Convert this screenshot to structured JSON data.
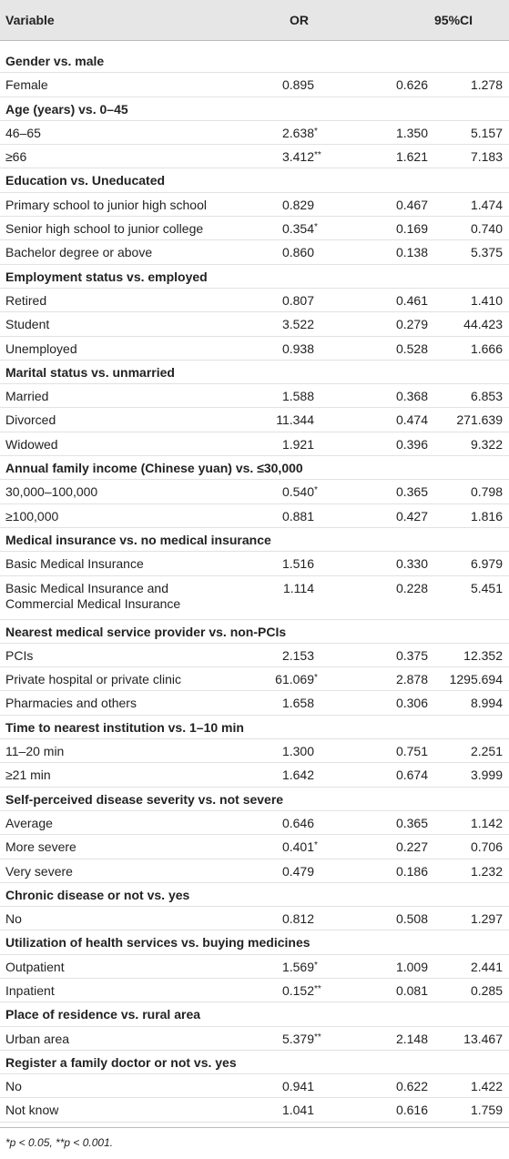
{
  "table": {
    "header": [
      "Variable",
      "OR",
      "95%CI"
    ],
    "groups": [
      {
        "title": "Gender vs. male",
        "rows": [
          {
            "label": "Female",
            "or": "0.895",
            "ci_low": "0.626",
            "ci_high": "1.278"
          }
        ]
      },
      {
        "title": "Age (years) vs. 0–45",
        "rows": [
          {
            "label": "46–65",
            "or": "2.638",
            "sig": "*",
            "ci_low": "1.350",
            "ci_high": "5.157"
          },
          {
            "label": "≥66",
            "or": "3.412",
            "sig": "**",
            "ci_low": "1.621",
            "ci_high": "7.183"
          }
        ]
      },
      {
        "title": "Education vs. Uneducated",
        "rows": [
          {
            "label": "Primary school to junior high school",
            "or": "0.829",
            "ci_low": "0.467",
            "ci_high": "1.474"
          },
          {
            "label": "Senior high school to junior college",
            "or": "0.354",
            "sig": "*",
            "ci_low": "0.169",
            "ci_high": "0.740"
          },
          {
            "label": "Bachelor degree or above",
            "or": "0.860",
            "ci_low": "0.138",
            "ci_high": "5.375"
          }
        ]
      },
      {
        "title": "Employment status vs. employed",
        "rows": [
          {
            "label": "Retired",
            "or": "0.807",
            "ci_low": "0.461",
            "ci_high": "1.410"
          },
          {
            "label": "Student",
            "or": "3.522",
            "ci_low": "0.279",
            "ci_high": "44.423"
          },
          {
            "label": "Unemployed",
            "or": "0.938",
            "ci_low": "0.528",
            "ci_high": "1.666"
          }
        ]
      },
      {
        "title": "Marital status vs. unmarried",
        "rows": [
          {
            "label": "Married",
            "or": "1.588",
            "ci_low": "0.368",
            "ci_high": "6.853"
          },
          {
            "label": "Divorced",
            "or": "11.344",
            "ci_low": "0.474",
            "ci_high": "271.639"
          },
          {
            "label": "Widowed",
            "or": "1.921",
            "ci_low": "0.396",
            "ci_high": "9.322"
          }
        ]
      },
      {
        "title": "Annual family income (Chinese yuan) vs. ≤30,000",
        "rows": [
          {
            "label": "30,000–100,000",
            "or": "0.540",
            "sig": "*",
            "ci_low": "0.365",
            "ci_high": "0.798"
          },
          {
            "label": "≥100,000",
            "or": "0.881",
            "ci_low": "0.427",
            "ci_high": "1.816"
          }
        ]
      },
      {
        "title": "Medical insurance vs. no medical insurance",
        "rows": [
          {
            "label": "Basic Medical Insurance",
            "or": "1.516",
            "ci_low": "0.330",
            "ci_high": "6.979"
          },
          {
            "label": "Basic Medical Insurance and\nCommercial Medical Insurance",
            "or": "1.114",
            "ci_low": "0.228",
            "ci_high": "5.451"
          }
        ]
      },
      {
        "title": "Nearest medical service provider vs. non-PCIs",
        "rows": [
          {
            "label": "PCIs",
            "or": "2.153",
            "ci_low": "0.375",
            "ci_high": "12.352"
          },
          {
            "label": "Private hospital or private clinic",
            "or": "61.069",
            "sig": "*",
            "ci_low": "2.878",
            "ci_high": "1295.694"
          },
          {
            "label": "Pharmacies and others",
            "or": "1.658",
            "ci_low": "0.306",
            "ci_high": "8.994"
          }
        ]
      },
      {
        "title": "Time to nearest institution vs. 1–10 min",
        "rows": [
          {
            "label": "11–20 min",
            "or": "1.300",
            "ci_low": "0.751",
            "ci_high": "2.251"
          },
          {
            "label": "≥21 min",
            "or": "1.642",
            "ci_low": "0.674",
            "ci_high": "3.999"
          }
        ]
      },
      {
        "title": "Self-perceived disease severity vs. not severe",
        "rows": [
          {
            "label": "Average",
            "or": "0.646",
            "ci_low": "0.365",
            "ci_high": "1.142"
          },
          {
            "label": "More severe",
            "or": "0.401",
            "sig": "*",
            "ci_low": "0.227",
            "ci_high": "0.706"
          },
          {
            "label": "Very severe",
            "or": "0.479",
            "ci_low": "0.186",
            "ci_high": "1.232"
          }
        ]
      },
      {
        "title": "Chronic disease or not vs. yes",
        "rows": [
          {
            "label": "No",
            "or": "0.812",
            "ci_low": "0.508",
            "ci_high": "1.297"
          }
        ]
      },
      {
        "title": "Utilization of health services vs. buying medicines",
        "rows": [
          {
            "label": "Outpatient",
            "or": "1.569",
            "sig": "*",
            "ci_low": "1.009",
            "ci_high": "2.441"
          },
          {
            "label": "Inpatient",
            "or": "0.152",
            "sig": "**",
            "ci_low": "0.081",
            "ci_high": "0.285"
          }
        ]
      },
      {
        "title": "Place of residence vs. rural area",
        "rows": [
          {
            "label": "Urban area",
            "or": "5.379",
            "sig": "**",
            "ci_low": "2.148",
            "ci_high": "13.467"
          }
        ]
      },
      {
        "title": "Register a family doctor or not vs. yes",
        "rows": [
          {
            "label": "No",
            "or": "0.941",
            "ci_low": "0.622",
            "ci_high": "1.422"
          },
          {
            "label": "Not know",
            "or": "1.041",
            "ci_low": "0.616",
            "ci_high": "1.759"
          }
        ]
      }
    ],
    "footnote": "*p < 0.05, **p < 0.001."
  }
}
